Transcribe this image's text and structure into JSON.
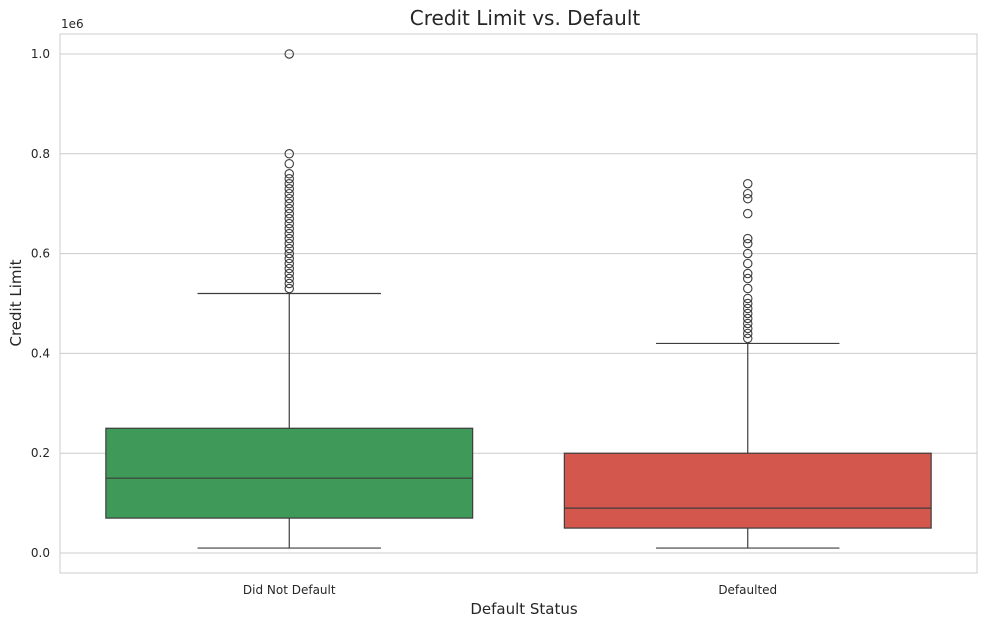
{
  "chart_data": {
    "type": "box",
    "title": "Credit Limit vs. Default",
    "xlabel": "Default Status",
    "ylabel": "Credit Limit",
    "y_offset_label": "1e6",
    "ylim": [
      -40000,
      1040000
    ],
    "y_ticks": [
      0,
      200000,
      400000,
      600000,
      800000,
      1000000
    ],
    "y_tick_labels": [
      "0.0",
      "0.2",
      "0.4",
      "0.6",
      "0.8",
      "1.0"
    ],
    "grid": "horizontal",
    "categories": [
      "Did Not Default",
      "Defaulted"
    ],
    "boxes": [
      {
        "category": "Did Not Default",
        "color": "#3f9a59",
        "whisker_low": 10000,
        "q1": 70000,
        "median": 150000,
        "q3": 250000,
        "whisker_high": 520000,
        "outliers": [
          530000,
          540000,
          550000,
          560000,
          570000,
          580000,
          590000,
          600000,
          610000,
          620000,
          630000,
          640000,
          650000,
          660000,
          670000,
          680000,
          690000,
          700000,
          710000,
          720000,
          730000,
          740000,
          750000,
          760000,
          780000,
          800000,
          1000000
        ]
      },
      {
        "category": "Defaulted",
        "color": "#d3574c",
        "whisker_low": 10000,
        "q1": 50000,
        "median": 90000,
        "q3": 200000,
        "whisker_high": 420000,
        "outliers": [
          430000,
          440000,
          450000,
          460000,
          470000,
          480000,
          490000,
          500000,
          510000,
          530000,
          550000,
          560000,
          580000,
          600000,
          620000,
          630000,
          680000,
          710000,
          720000,
          740000
        ]
      }
    ]
  }
}
